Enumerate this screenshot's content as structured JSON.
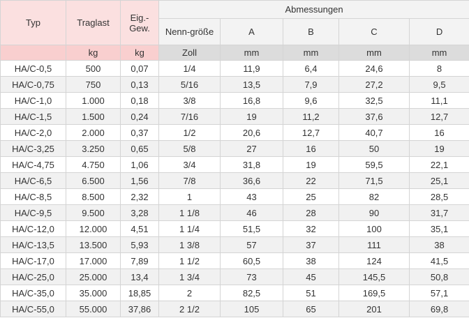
{
  "headers": {
    "typ": "Typ",
    "traglast": "Traglast",
    "eig_gew": "Eig.-Gew.",
    "abmessungen": "Abmessungen",
    "nenngroesse": "Nenn-größe",
    "a": "A",
    "b": "B",
    "c": "C",
    "d": "D"
  },
  "units": [
    "",
    "kg",
    "kg",
    "Zoll",
    "mm",
    "mm",
    "mm",
    "mm"
  ],
  "rows": [
    [
      "HA/C-0,5",
      "500",
      "0,07",
      "1/4",
      "11,9",
      "6,4",
      "24,6",
      "8"
    ],
    [
      "HA/C-0,75",
      "750",
      "0,13",
      "5/16",
      "13,5",
      "7,9",
      "27,2",
      "9,5"
    ],
    [
      "HA/C-1,0",
      "1.000",
      "0,18",
      "3/8",
      "16,8",
      "9,6",
      "32,5",
      "11,1"
    ],
    [
      "HA/C-1,5",
      "1.500",
      "0,24",
      "7/16",
      "19",
      "11,2",
      "37,6",
      "12,7"
    ],
    [
      "HA/C-2,0",
      "2.000",
      "0,37",
      "1/2",
      "20,6",
      "12,7",
      "40,7",
      "16"
    ],
    [
      "HA/C-3,25",
      "3.250",
      "0,65",
      "5/8",
      "27",
      "16",
      "50",
      "19"
    ],
    [
      "HA/C-4,75",
      "4.750",
      "1,06",
      "3/4",
      "31,8",
      "19",
      "59,5",
      "22,1"
    ],
    [
      "HA/C-6,5",
      "6.500",
      "1,56",
      "7/8",
      "36,6",
      "22",
      "71,5",
      "25,1"
    ],
    [
      "HA/C-8,5",
      "8.500",
      "2,32",
      "1",
      "43",
      "25",
      "82",
      "28,5"
    ],
    [
      "HA/C-9,5",
      "9.500",
      "3,28",
      "1 1/8",
      "46",
      "28",
      "90",
      "31,7"
    ],
    [
      "HA/C-12,0",
      "12.000",
      "4,51",
      "1 1/4",
      "51,5",
      "32",
      "100",
      "35,1"
    ],
    [
      "HA/C-13,5",
      "13.500",
      "5,93",
      "1 3/8",
      "57",
      "37",
      "111",
      "38"
    ],
    [
      "HA/C-17,0",
      "17.000",
      "7,89",
      "1 1/2",
      "60,5",
      "38",
      "124",
      "41,5"
    ],
    [
      "HA/C-25,0",
      "25.000",
      "13,4",
      "1 3/4",
      "73",
      "45",
      "145,5",
      "50,8"
    ],
    [
      "HA/C-35,0",
      "35.000",
      "18,85",
      "2",
      "82,5",
      "51",
      "169,5",
      "57,1"
    ],
    [
      "HA/C-55,0",
      "55.000",
      "37,86",
      "2 1/2",
      "105",
      "65",
      "201",
      "69,8"
    ]
  ]
}
